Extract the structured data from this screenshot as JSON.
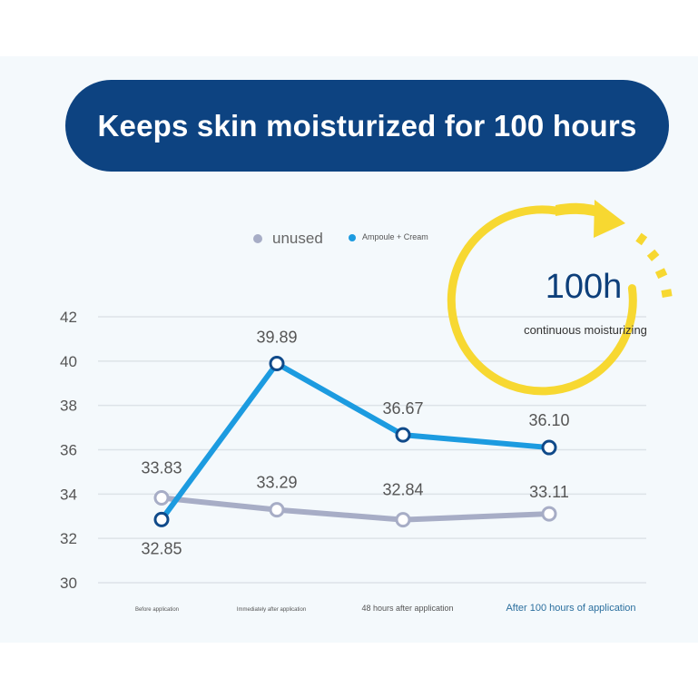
{
  "banner": {
    "title": "Keeps skin moisturized for 100 hours"
  },
  "badge": {
    "value": "100h",
    "caption": "continuous moisturizing",
    "ring_color": "#f7d831",
    "text_color": "#0d3f7a"
  },
  "colors": {
    "unused": "#a7adc6",
    "treated": "#1c9be0",
    "marker_treated_border": "#104a8a",
    "marker_unused_border": "#a7adc6"
  },
  "chart_data": {
    "type": "line",
    "categories": [
      "Before application",
      "Immediately after application",
      "48 hours after application",
      "After 100 hours of application"
    ],
    "series": [
      {
        "name": "unused",
        "values": [
          33.83,
          33.29,
          32.84,
          33.11
        ],
        "labels": [
          "33.83",
          "33.29",
          "32.84",
          "33.11"
        ]
      },
      {
        "name": "Ampoule + Cream",
        "values": [
          32.85,
          39.89,
          36.67,
          36.1
        ],
        "labels": [
          "32.85",
          "39.89",
          "36.67",
          "36.10"
        ]
      }
    ],
    "yticks": [
      "30",
      "32",
      "34",
      "36",
      "38",
      "40",
      "42"
    ],
    "ylim": [
      30,
      42
    ],
    "title": "",
    "xlabel": "",
    "ylabel": "",
    "grid": true,
    "legend": "top-center"
  }
}
